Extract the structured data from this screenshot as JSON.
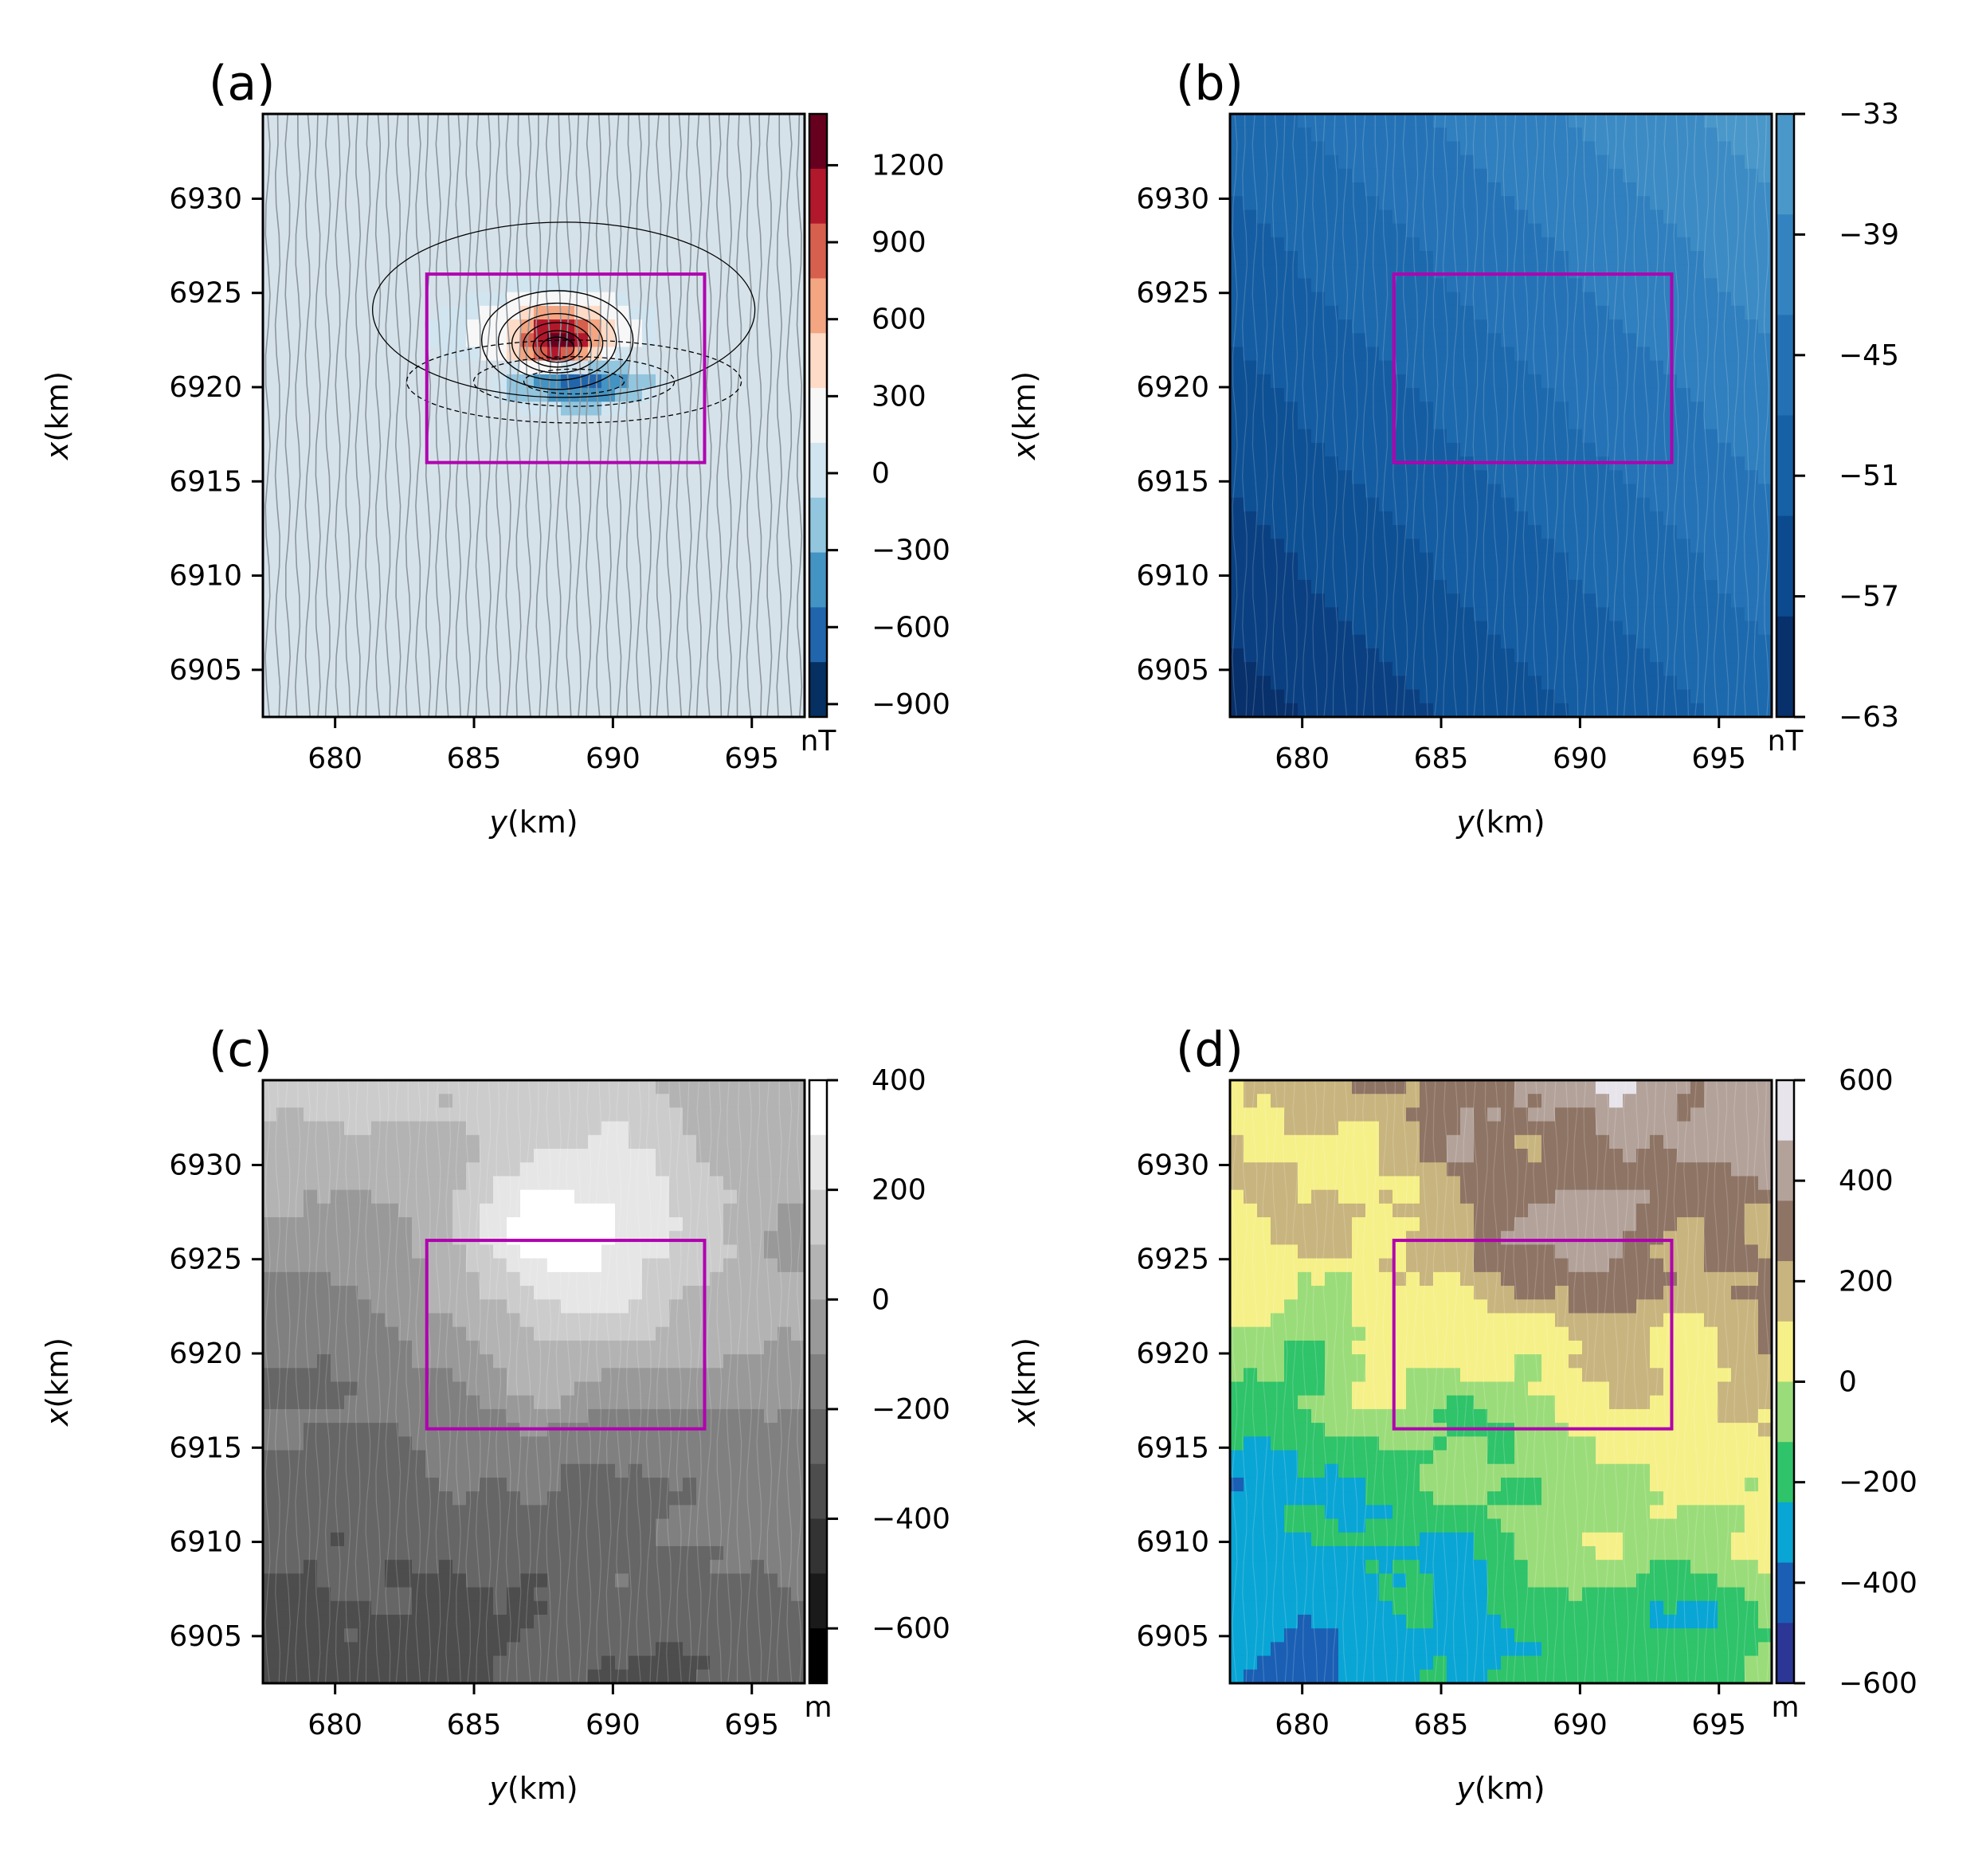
{
  "chart_data": [
    {
      "type": "heatmap",
      "panel_label": "(a)",
      "xlabel": "y(km)",
      "ylabel": "x(km)",
      "xlim": [
        677.4,
        696.9
      ],
      "ylim": [
        6902.5,
        6934.5
      ],
      "xticks": [
        "680",
        "685",
        "690",
        "695"
      ],
      "yticks": [
        "6905",
        "6910",
        "6915",
        "6920",
        "6925",
        "6930"
      ],
      "colorbar": {
        "unit": "nT",
        "range": [
          -950,
          1400
        ],
        "ticks": [
          "1200",
          "900",
          "600",
          "300",
          "0",
          "−300",
          "−600",
          "−900"
        ],
        "tick_values": [
          1200,
          900,
          600,
          300,
          0,
          -300,
          -600,
          -900
        ],
        "colormap": [
          "#053061",
          "#2166ac",
          "#4393c3",
          "#92c5de",
          "#d1e5f0",
          "#f7f7f7",
          "#fddbc7",
          "#f4a582",
          "#d6604d",
          "#b2182b",
          "#67001f"
        ]
      },
      "background_color": "#d6e2ea",
      "anomalies": [
        {
          "type": "positive",
          "center": [
            688.0,
            6922.5
          ],
          "peak_nT": 1300
        },
        {
          "type": "negative",
          "center": [
            688.6,
            6920.3
          ],
          "peak_nT": -900
        }
      ],
      "highlight_box": {
        "y_range": [
          683.3,
          693.3
        ],
        "x_range": [
          6916.0,
          6926.0
        ],
        "color": "#b000b0"
      }
    },
    {
      "type": "heatmap",
      "panel_label": "(b)",
      "xlabel": "y(km)",
      "ylabel": "x(km)",
      "xlim": [
        677.4,
        696.9
      ],
      "ylim": [
        6902.5,
        6934.5
      ],
      "xticks": [
        "680",
        "685",
        "690",
        "695"
      ],
      "yticks": [
        "6905",
        "6910",
        "6915",
        "6920",
        "6925",
        "6930"
      ],
      "colorbar": {
        "unit": "nT",
        "range": [
          -63,
          -33
        ],
        "ticks": [
          "−33",
          "−39",
          "−45",
          "−51",
          "−57",
          "−63"
        ],
        "tick_values": [
          -33,
          -39,
          -45,
          -51,
          -57,
          -63
        ],
        "colormap": [
          "#08306b",
          "#0b4a8e",
          "#1660a5",
          "#2371b4",
          "#3483c1",
          "#4a97c9"
        ]
      },
      "trend": "regional field increasing toward the upper-right",
      "highlight_box": {
        "y_range": [
          683.3,
          693.3
        ],
        "x_range": [
          6916.0,
          6926.0
        ],
        "color": "#b000b0"
      }
    },
    {
      "type": "heatmap",
      "panel_label": "(c)",
      "xlabel": "y(km)",
      "ylabel": "x(km)",
      "xlim": [
        677.4,
        696.9
      ],
      "ylim": [
        6902.5,
        6934.5
      ],
      "xticks": [
        "680",
        "685",
        "690",
        "695"
      ],
      "yticks": [
        "6905",
        "6910",
        "6915",
        "6920",
        "6925",
        "6930"
      ],
      "colorbar": {
        "unit": "m",
        "range": [
          -700,
          400
        ],
        "ticks": [
          "400",
          "200",
          "0",
          "−200",
          "−400",
          "−600"
        ],
        "tick_values": [
          400,
          200,
          0,
          -200,
          -400,
          -600
        ],
        "colormap": [
          "#000000",
          "#1a1a1a",
          "#333333",
          "#4d4d4d",
          "#666666",
          "#808080",
          "#999999",
          "#b3b3b3",
          "#cccccc",
          "#e6e6e6",
          "#ffffff"
        ]
      },
      "highlight_box": {
        "y_range": [
          683.3,
          693.3
        ],
        "x_range": [
          6916.0,
          6926.0
        ],
        "color": "#b000b0"
      }
    },
    {
      "type": "heatmap",
      "panel_label": "(d)",
      "xlabel": "y(km)",
      "ylabel": "x(km)",
      "xlim": [
        677.4,
        696.9
      ],
      "ylim": [
        6902.5,
        6934.5
      ],
      "xticks": [
        "680",
        "685",
        "690",
        "695"
      ],
      "yticks": [
        "6905",
        "6910",
        "6915",
        "6920",
        "6925",
        "6930"
      ],
      "colorbar": {
        "unit": "m",
        "range": [
          -600,
          600
        ],
        "ticks": [
          "600",
          "400",
          "200",
          "0",
          "−200",
          "−400",
          "−600"
        ],
        "tick_values": [
          600,
          400,
          200,
          0,
          -200,
          -400,
          -600
        ],
        "colormap": [
          "#e8e4ec",
          "#b3a29a",
          "#8e7464",
          "#c8b47e",
          "#f6f088",
          "#9bdc7a",
          "#2fc36a",
          "#09a5d5",
          "#1a5fb4",
          "#2b3695"
        ]
      },
      "highlight_box": {
        "y_range": [
          683.3,
          693.3
        ],
        "x_range": [
          6916.0,
          6926.0
        ],
        "color": "#b000b0"
      }
    }
  ]
}
